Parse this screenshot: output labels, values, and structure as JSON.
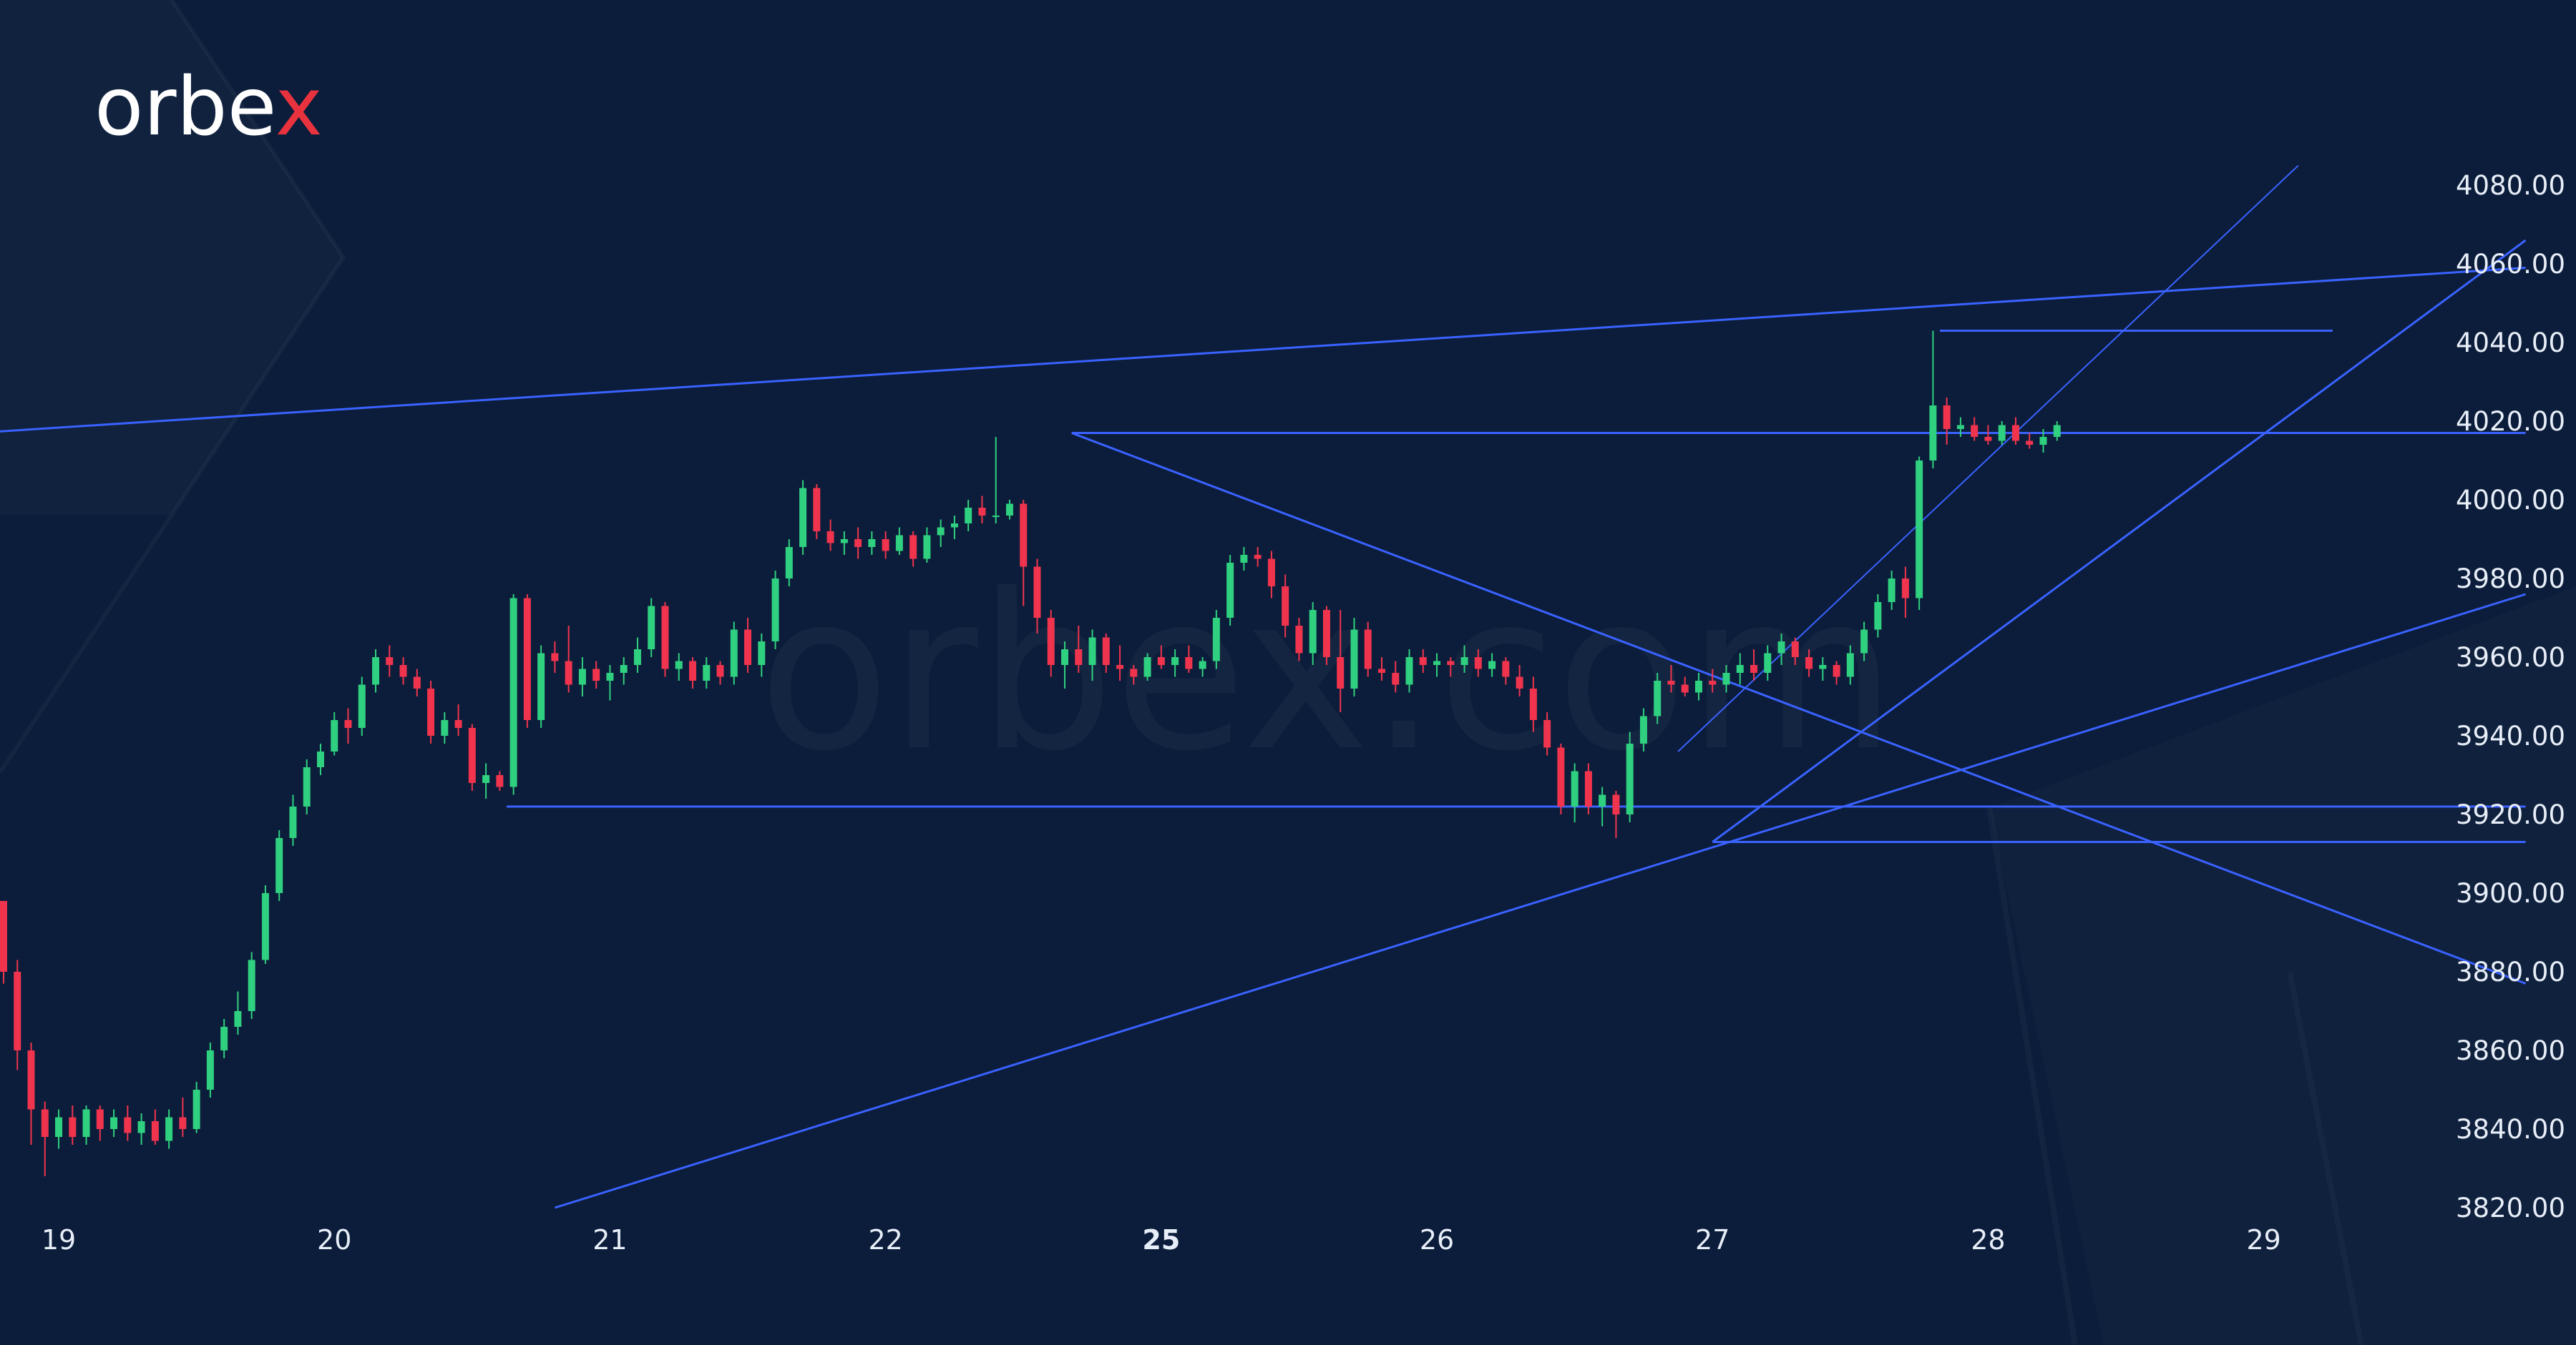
{
  "brand": {
    "logo_prefix": "orbe",
    "logo_x": "x",
    "watermark": "orbex.com",
    "logo_accent_color": "#e8333f"
  },
  "colors": {
    "background": "#0b1d3a",
    "up": "#2fd07f",
    "down": "#f0344d",
    "trendline": "#3a62ff",
    "text": "#e8eef8"
  },
  "chart_data": {
    "type": "candlestick",
    "title": "",
    "xlabel": "",
    "ylabel": "",
    "ylim": [
      3820,
      4090
    ],
    "yticks": [
      4080,
      4060,
      4040,
      4020,
      4000,
      3980,
      3960,
      3940,
      3920,
      3900,
      3880,
      3860,
      3840,
      3820
    ],
    "ytick_labels": [
      "4080.00",
      "4060.00",
      "4040.00",
      "4020.00",
      "4000.00",
      "3980.00",
      "3960.00",
      "3940.00",
      "3920.00",
      "3900.00",
      "3880.00",
      "3860.00",
      "3840.00",
      "3820.00"
    ],
    "x_range": [
      0,
      183
    ],
    "xticks": [
      {
        "label": "19",
        "x": 4,
        "bold": false
      },
      {
        "label": "20",
        "x": 24,
        "bold": false
      },
      {
        "label": "21",
        "x": 44,
        "bold": false
      },
      {
        "label": "22",
        "x": 64,
        "bold": false
      },
      {
        "label": "25",
        "x": 84,
        "bold": true
      },
      {
        "label": "26",
        "x": 104,
        "bold": false
      },
      {
        "label": "27",
        "x": 124,
        "bold": false
      },
      {
        "label": "28",
        "x": 144,
        "bold": false
      },
      {
        "label": "29",
        "x": 164,
        "bold": false
      }
    ],
    "candles": [
      [
        3898,
        3898,
        3877,
        3880
      ],
      [
        3880,
        3883,
        3855,
        3860
      ],
      [
        3860,
        3862,
        3836,
        3845
      ],
      [
        3845,
        3847,
        3828,
        3838
      ],
      [
        3838,
        3845,
        3835,
        3843
      ],
      [
        3843,
        3846,
        3836,
        3838
      ],
      [
        3838,
        3846,
        3836,
        3845
      ],
      [
        3845,
        3846,
        3837,
        3840
      ],
      [
        3840,
        3845,
        3838,
        3843
      ],
      [
        3843,
        3846,
        3837,
        3839
      ],
      [
        3839,
        3844,
        3836,
        3842
      ],
      [
        3842,
        3845,
        3836,
        3837
      ],
      [
        3837,
        3845,
        3835,
        3843
      ],
      [
        3843,
        3848,
        3838,
        3840
      ],
      [
        3840,
        3852,
        3839,
        3850
      ],
      [
        3850,
        3862,
        3848,
        3860
      ],
      [
        3860,
        3868,
        3858,
        3866
      ],
      [
        3866,
        3875,
        3864,
        3870
      ],
      [
        3870,
        3885,
        3868,
        3883
      ],
      [
        3883,
        3902,
        3882,
        3900
      ],
      [
        3900,
        3916,
        3898,
        3914
      ],
      [
        3914,
        3925,
        3912,
        3922
      ],
      [
        3922,
        3934,
        3920,
        3932
      ],
      [
        3932,
        3938,
        3930,
        3936
      ],
      [
        3936,
        3946,
        3935,
        3944
      ],
      [
        3944,
        3947,
        3938,
        3942
      ],
      [
        3942,
        3955,
        3940,
        3953
      ],
      [
        3953,
        3962,
        3951,
        3960
      ],
      [
        3960,
        3963,
        3955,
        3958
      ],
      [
        3958,
        3960,
        3953,
        3955
      ],
      [
        3955,
        3957,
        3950,
        3952
      ],
      [
        3952,
        3954,
        3938,
        3940
      ],
      [
        3940,
        3946,
        3938,
        3944
      ],
      [
        3944,
        3948,
        3940,
        3942
      ],
      [
        3942,
        3943,
        3926,
        3928
      ],
      [
        3928,
        3933,
        3924,
        3930
      ],
      [
        3930,
        3931,
        3926,
        3927
      ],
      [
        3927,
        3976,
        3925,
        3975
      ],
      [
        3975,
        3976,
        3942,
        3944
      ],
      [
        3944,
        3963,
        3942,
        3961
      ],
      [
        3961,
        3964,
        3956,
        3959
      ],
      [
        3959,
        3968,
        3951,
        3953
      ],
      [
        3953,
        3960,
        3950,
        3957
      ],
      [
        3957,
        3959,
        3952,
        3954
      ],
      [
        3954,
        3958,
        3949,
        3956
      ],
      [
        3956,
        3960,
        3953,
        3958
      ],
      [
        3958,
        3965,
        3956,
        3962
      ],
      [
        3962,
        3975,
        3960,
        3973
      ],
      [
        3973,
        3974,
        3955,
        3957
      ],
      [
        3957,
        3961,
        3954,
        3959
      ],
      [
        3959,
        3960,
        3952,
        3954
      ],
      [
        3954,
        3960,
        3952,
        3958
      ],
      [
        3958,
        3959,
        3953,
        3955
      ],
      [
        3955,
        3969,
        3953,
        3967
      ],
      [
        3967,
        3970,
        3956,
        3958
      ],
      [
        3958,
        3966,
        3955,
        3964
      ],
      [
        3964,
        3982,
        3962,
        3980
      ],
      [
        3980,
        3990,
        3978,
        3988
      ],
      [
        3988,
        4005,
        3986,
        4003
      ],
      [
        4003,
        4004,
        3990,
        3992
      ],
      [
        3992,
        3995,
        3987,
        3989
      ],
      [
        3989,
        3992,
        3986,
        3990
      ],
      [
        3990,
        3993,
        3985,
        3988
      ],
      [
        3988,
        3992,
        3986,
        3990
      ],
      [
        3990,
        3992,
        3985,
        3987
      ],
      [
        3987,
        3993,
        3986,
        3991
      ],
      [
        3991,
        3992,
        3983,
        3985
      ],
      [
        3985,
        3993,
        3984,
        3991
      ],
      [
        3991,
        3995,
        3988,
        3993
      ],
      [
        3993,
        3996,
        3990,
        3994
      ],
      [
        3994,
        4000,
        3992,
        3998
      ],
      [
        3998,
        4001,
        3994,
        3996
      ],
      [
        3996,
        4016,
        3994,
        3996
      ],
      [
        3996,
        4000,
        3995,
        3999
      ],
      [
        3999,
        4000,
        3973,
        3983
      ],
      [
        3983,
        3985,
        3966,
        3970
      ],
      [
        3970,
        3972,
        3955,
        3958
      ],
      [
        3958,
        3964,
        3952,
        3962
      ],
      [
        3962,
        3968,
        3956,
        3958
      ],
      [
        3958,
        3967,
        3954,
        3965
      ],
      [
        3965,
        3966,
        3956,
        3958
      ],
      [
        3958,
        3963,
        3954,
        3957
      ],
      [
        3957,
        3958,
        3953,
        3955
      ],
      [
        3955,
        3961,
        3954,
        3960
      ],
      [
        3960,
        3963,
        3957,
        3958
      ],
      [
        3958,
        3962,
        3955,
        3960
      ],
      [
        3960,
        3963,
        3956,
        3957
      ],
      [
        3957,
        3960,
        3955,
        3959
      ],
      [
        3959,
        3972,
        3957,
        3970
      ],
      [
        3970,
        3986,
        3968,
        3984
      ],
      [
        3984,
        3988,
        3982,
        3986
      ],
      [
        3986,
        3988,
        3983,
        3985
      ],
      [
        3985,
        3987,
        3975,
        3978
      ],
      [
        3978,
        3981,
        3965,
        3968
      ],
      [
        3968,
        3970,
        3959,
        3961
      ],
      [
        3961,
        3974,
        3958,
        3972
      ],
      [
        3972,
        3973,
        3958,
        3960
      ],
      [
        3960,
        3972,
        3946,
        3952
      ],
      [
        3952,
        3970,
        3950,
        3967
      ],
      [
        3967,
        3969,
        3955,
        3957
      ],
      [
        3957,
        3960,
        3954,
        3956
      ],
      [
        3956,
        3959,
        3951,
        3953
      ],
      [
        3953,
        3962,
        3951,
        3960
      ],
      [
        3960,
        3962,
        3956,
        3958
      ],
      [
        3958,
        3961,
        3955,
        3959
      ],
      [
        3959,
        3960,
        3955,
        3958
      ],
      [
        3958,
        3963,
        3956,
        3960
      ],
      [
        3960,
        3962,
        3955,
        3957
      ],
      [
        3957,
        3961,
        3955,
        3959
      ],
      [
        3959,
        3960,
        3953,
        3955
      ],
      [
        3955,
        3958,
        3950,
        3952
      ],
      [
        3952,
        3955,
        3941,
        3944
      ],
      [
        3944,
        3946,
        3935,
        3937
      ],
      [
        3937,
        3938,
        3920,
        3922
      ],
      [
        3922,
        3933,
        3918,
        3931
      ],
      [
        3931,
        3933,
        3920,
        3922
      ],
      [
        3922,
        3927,
        3917,
        3925
      ],
      [
        3925,
        3926,
        3914,
        3920
      ],
      [
        3920,
        3941,
        3918,
        3938
      ],
      [
        3938,
        3947,
        3936,
        3945
      ],
      [
        3945,
        3956,
        3943,
        3954
      ],
      [
        3954,
        3958,
        3951,
        3953
      ],
      [
        3953,
        3955,
        3950,
        3951
      ],
      [
        3951,
        3956,
        3949,
        3954
      ],
      [
        3954,
        3957,
        3951,
        3953
      ],
      [
        3953,
        3958,
        3951,
        3956
      ],
      [
        3956,
        3961,
        3953,
        3958
      ],
      [
        3958,
        3962,
        3954,
        3956
      ],
      [
        3956,
        3963,
        3954,
        3961
      ],
      [
        3961,
        3966,
        3958,
        3964
      ],
      [
        3964,
        3965,
        3958,
        3960
      ],
      [
        3960,
        3962,
        3955,
        3957
      ],
      [
        3957,
        3960,
        3954,
        3958
      ],
      [
        3958,
        3959,
        3953,
        3955
      ],
      [
        3955,
        3963,
        3953,
        3961
      ],
      [
        3961,
        3969,
        3959,
        3967
      ],
      [
        3967,
        3976,
        3965,
        3974
      ],
      [
        3974,
        3982,
        3972,
        3980
      ],
      [
        3980,
        3983,
        3970,
        3975
      ],
      [
        3975,
        4011,
        3972,
        4010
      ],
      [
        4010,
        4043,
        4008,
        4024
      ],
      [
        4024,
        4026,
        4014,
        4018
      ],
      [
        4018,
        4021,
        4016,
        4019
      ],
      [
        4019,
        4021,
        4015,
        4016
      ],
      [
        4016,
        4019,
        4014,
        4015
      ],
      [
        4015,
        4020,
        4014,
        4019
      ],
      [
        4019,
        4021,
        4014,
        4015
      ],
      [
        4015,
        4017,
        4013,
        4014
      ],
      [
        4014,
        4018,
        4012,
        4016
      ],
      [
        4016,
        4020,
        4015,
        4019
      ]
    ],
    "trendlines": [
      {
        "from": [
          -2,
          4017
        ],
        "to": [
          183,
          4059
        ]
      },
      {
        "from": [
          77.5,
          4017
        ],
        "to": [
          183,
          4017
        ]
      },
      {
        "from": [
          140.5,
          4043
        ],
        "to": [
          169,
          4043
        ]
      },
      {
        "from": [
          77.5,
          4017
        ],
        "to": [
          183,
          3877
        ]
      },
      {
        "from": [
          36.5,
          3922
        ],
        "to": [
          183,
          3922
        ]
      },
      {
        "from": [
          124,
          3913
        ],
        "to": [
          183,
          3913
        ]
      },
      {
        "from": [
          40,
          3820
        ],
        "to": [
          183,
          3976
        ]
      },
      {
        "from": [
          124,
          3913
        ],
        "to": [
          183,
          4066
        ]
      },
      {
        "from": [
          121.5,
          3936
        ],
        "to": [
          166.5,
          4085
        ]
      }
    ]
  }
}
